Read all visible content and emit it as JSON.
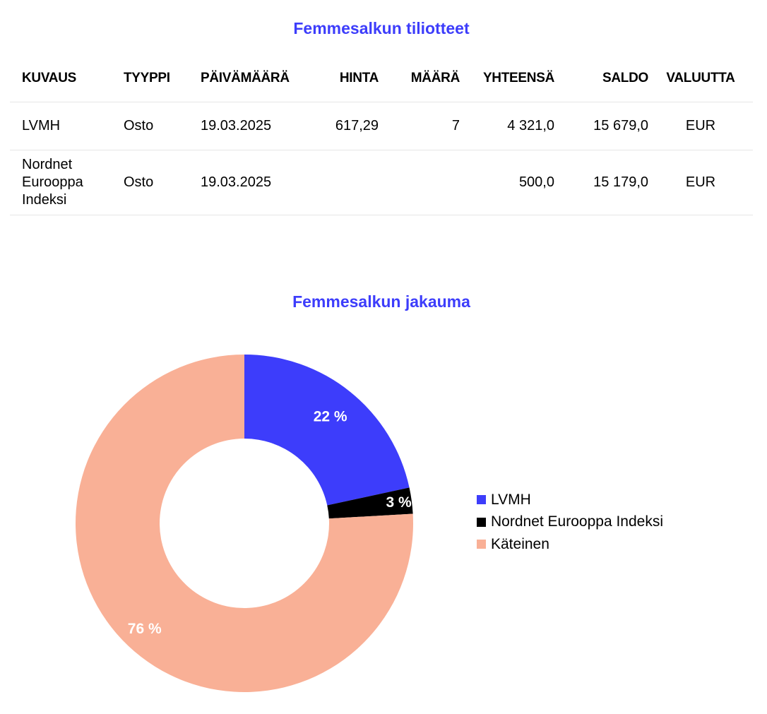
{
  "statements": {
    "title": "Femmesalkun tiliotteet",
    "columns": [
      "KUVAUS",
      "TYYPPI",
      "PÄIVÄMÄÄRÄ",
      "HINTA",
      "MÄÄRÄ",
      "YHTEENSÄ",
      "SALDO",
      "VALUUTTA"
    ],
    "rows": [
      {
        "kuvaus": "LVMH",
        "tyyppi": "Osto",
        "paivamaara": "19.03.2025",
        "hinta": "617,29",
        "maara": "7",
        "yhteensa": "4 321,0",
        "saldo": "15 679,0",
        "valuutta": "EUR"
      },
      {
        "kuvaus": "Nordnet Eurooppa Indeksi",
        "tyyppi": "Osto",
        "paivamaara": "19.03.2025",
        "hinta": "",
        "maara": "",
        "yhteensa": "500,0",
        "saldo": "15 179,0",
        "valuutta": "EUR"
      }
    ]
  },
  "chart_data": {
    "type": "pie",
    "variant": "donut",
    "title": "Femmesalkun jakauma",
    "categories": [
      "LVMH",
      "Nordnet Eurooppa Indeksi",
      "Käteinen"
    ],
    "values": [
      21.6,
      2.5,
      75.9
    ],
    "labels": [
      "22 %",
      "3 %",
      "76 %"
    ],
    "colors": [
      "#3d3dfb",
      "#000000",
      "#f9b096"
    ],
    "label_color": "#ffffff",
    "legend_position": "right"
  },
  "colors": {
    "accent": "#3d3dfb",
    "divider": "#e6e6e6"
  }
}
